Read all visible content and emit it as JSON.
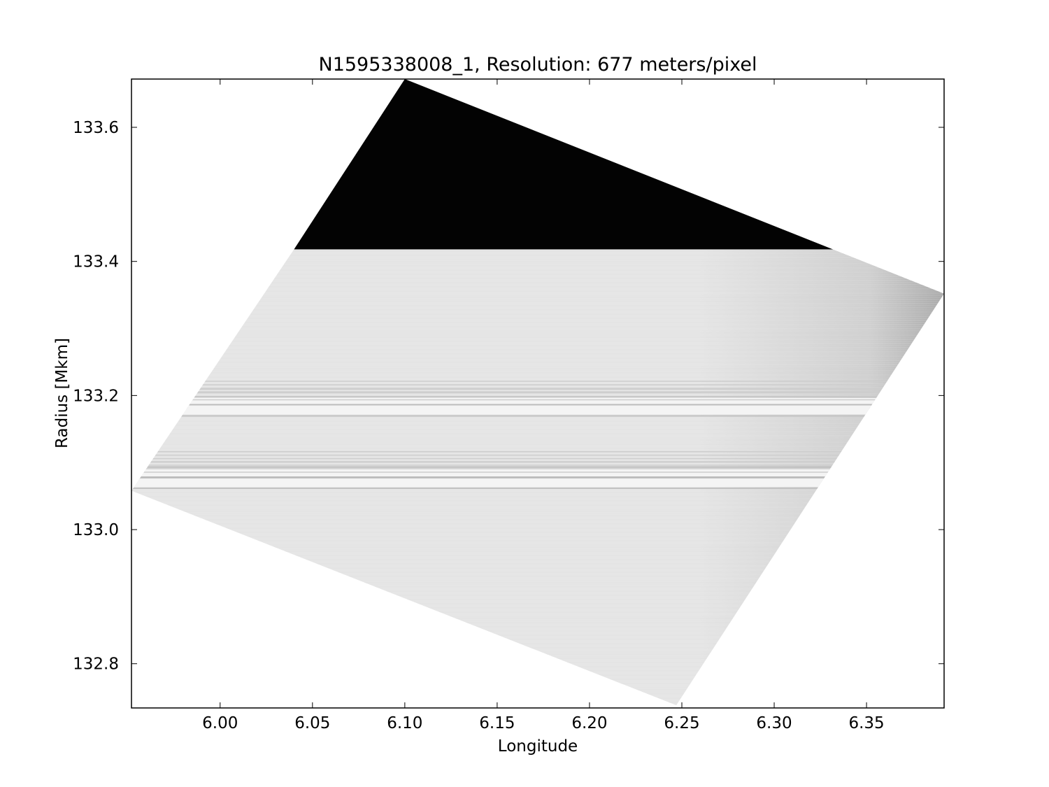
{
  "chart_data": {
    "type": "heatmap",
    "title": "N1595338008_1, Resolution: 677 meters/pixel",
    "xlabel": "Longitude",
    "ylabel": "Radius [Mkm]",
    "xlim": [
      5.952,
      6.392
    ],
    "ylim": [
      132.734,
      133.672
    ],
    "x_ticks": [
      "6.00",
      "6.05",
      "6.10",
      "6.15",
      "6.20",
      "6.25",
      "6.30",
      "6.35"
    ],
    "y_ticks": [
      "132.8",
      "133.0",
      "133.2",
      "133.4",
      "133.6"
    ],
    "colormap": "grayscale",
    "grid": false,
    "legend": "none",
    "image_footprint": [
      {
        "lon": 6.1,
        "radius": 133.672
      },
      {
        "lon": 6.392,
        "radius": 133.352
      },
      {
        "lon": 6.247,
        "radius": 132.738
      },
      {
        "lon": 5.952,
        "radius": 133.058
      },
      {
        "lon": 6.04,
        "radius": 133.418
      }
    ],
    "dark_region_lower_radius": 133.418,
    "bright_bands_radius": [
      133.19,
      133.178,
      133.085,
      133.07
    ],
    "colors": {
      "dark_region": "#030303",
      "ring_base": "#e6e6e6",
      "ring_edge": "#a8a8a8"
    }
  }
}
